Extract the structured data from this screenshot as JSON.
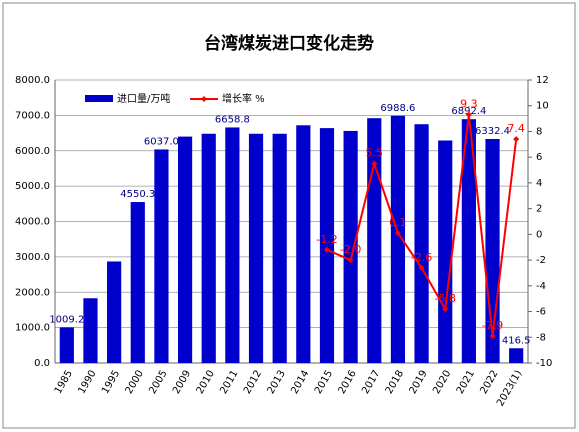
{
  "chart_data": {
    "type": "bar_line",
    "title": "台湾煤炭进口变化走势",
    "categories": [
      "1985",
      "1990",
      "1995",
      "2000",
      "2005",
      "2009",
      "2010",
      "2011",
      "2012",
      "2013",
      "2014",
      "2015",
      "2016",
      "2017",
      "2018",
      "2019",
      "2020",
      "2021",
      "2022",
      "2023(1)"
    ],
    "series": [
      {
        "name": "进口量/万吨",
        "color": "#0000cc",
        "type": "bar",
        "values": [
          1009.2,
          1830,
          2870,
          4550.3,
          6037.0,
          6400,
          6480,
          6658.8,
          6480,
          6480,
          6720,
          6640,
          6560,
          6920,
          6988.6,
          6750,
          6290,
          6892.4,
          6332.4,
          416.5
        ],
        "value_labels": [
          "1009.2",
          null,
          null,
          "4550.3",
          "6037.0",
          null,
          null,
          "6658.8",
          null,
          null,
          null,
          null,
          null,
          null,
          "6988.6",
          null,
          null,
          "6892.4",
          "6332.4",
          "416.5"
        ]
      },
      {
        "name": "增长率 %",
        "color": "#ff0000",
        "type": "line",
        "axis": "y2",
        "values": [
          null,
          null,
          null,
          null,
          null,
          null,
          null,
          null,
          null,
          null,
          null,
          -1.2,
          -2.0,
          5.5,
          0.1,
          -2.6,
          -5.8,
          9.3,
          -7.9,
          7.4
        ],
        "value_labels": [
          null,
          null,
          null,
          null,
          null,
          null,
          null,
          null,
          null,
          null,
          null,
          "-1.2",
          "-2.0",
          "5.5",
          "0.1",
          "-2.6",
          "-5.8",
          "9.3",
          "-7.9",
          "7.4"
        ]
      }
    ],
    "ylim": [
      0,
      8000
    ],
    "yticks": [
      {
        "value": 0,
        "label": "0.0"
      },
      {
        "value": 1000,
        "label": "1000.0"
      },
      {
        "value": 2000,
        "label": "2000.0"
      },
      {
        "value": 3000,
        "label": "3000.0"
      },
      {
        "value": 4000,
        "label": "4000.0"
      },
      {
        "value": 5000,
        "label": "5000.0"
      },
      {
        "value": 6000,
        "label": "6000.0"
      },
      {
        "value": 7000,
        "label": "7000.0"
      },
      {
        "value": 8000,
        "label": "8000.0"
      }
    ],
    "y2lim": [
      -10,
      12
    ],
    "y2ticks": [
      -10,
      -8,
      -6,
      -4,
      -2,
      0,
      2,
      4,
      6,
      8,
      10,
      12
    ],
    "grid": true,
    "legend": "top-left"
  }
}
